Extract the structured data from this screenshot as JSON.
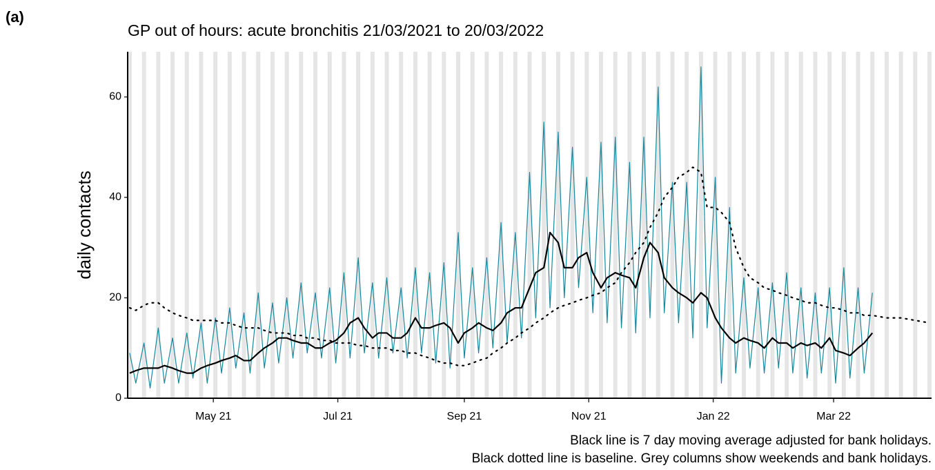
{
  "panel_label": "(a)",
  "chart_data": {
    "type": "line",
    "title": "GP out of hours: acute bronchitis 21/03/2021 to 20/03/2022",
    "y_label": "daily contacts",
    "annotations": [
      "Black line is 7 day moving average adjusted for bank holidays.",
      "Black dotted line is baseline. Grey columns show weekends and bank holidays."
    ],
    "shade_weekends": true,
    "shade_color": "#e5e5e5",
    "xlim": [
      "2021-03-20",
      "2022-04-18"
    ],
    "xticks": [
      {
        "value": "2021-05-01",
        "label": "May 21"
      },
      {
        "value": "2021-07-01",
        "label": "Jul 21"
      },
      {
        "value": "2021-09-01",
        "label": "Sep 21"
      },
      {
        "value": "2021-11-01",
        "label": "Nov 21"
      },
      {
        "value": "2022-01-01",
        "label": "Jan 22"
      },
      {
        "value": "2022-03-01",
        "label": "Mar 22"
      }
    ],
    "ylim": [
      0,
      69
    ],
    "yticks": [
      0,
      20,
      40,
      60
    ],
    "x": [
      "2021-03-21",
      "2021-03-24",
      "2021-03-28",
      "2021-03-31",
      "2021-04-04",
      "2021-04-07",
      "2021-04-11",
      "2021-04-14",
      "2021-04-18",
      "2021-04-21",
      "2021-04-25",
      "2021-04-28",
      "2021-05-02",
      "2021-05-05",
      "2021-05-09",
      "2021-05-12",
      "2021-05-16",
      "2021-05-19",
      "2021-05-23",
      "2021-05-26",
      "2021-05-30",
      "2021-06-02",
      "2021-06-06",
      "2021-06-09",
      "2021-06-13",
      "2021-06-16",
      "2021-06-20",
      "2021-06-23",
      "2021-06-27",
      "2021-06-30",
      "2021-07-04",
      "2021-07-07",
      "2021-07-11",
      "2021-07-14",
      "2021-07-18",
      "2021-07-21",
      "2021-07-25",
      "2021-07-28",
      "2021-08-01",
      "2021-08-04",
      "2021-08-08",
      "2021-08-11",
      "2021-08-15",
      "2021-08-18",
      "2021-08-22",
      "2021-08-25",
      "2021-08-29",
      "2021-09-01",
      "2021-09-05",
      "2021-09-08",
      "2021-09-12",
      "2021-09-15",
      "2021-09-19",
      "2021-09-22",
      "2021-09-26",
      "2021-09-29",
      "2021-10-03",
      "2021-10-06",
      "2021-10-10",
      "2021-10-13",
      "2021-10-17",
      "2021-10-20",
      "2021-10-24",
      "2021-10-27",
      "2021-10-31",
      "2021-11-03",
      "2021-11-07",
      "2021-11-10",
      "2021-11-14",
      "2021-11-17",
      "2021-11-21",
      "2021-11-24",
      "2021-11-28",
      "2021-12-01",
      "2021-12-05",
      "2021-12-08",
      "2021-12-12",
      "2021-12-15",
      "2021-12-19",
      "2021-12-22",
      "2021-12-26",
      "2021-12-29",
      "2022-01-02",
      "2022-01-05",
      "2022-01-09",
      "2022-01-12",
      "2022-01-16",
      "2022-01-19",
      "2022-01-23",
      "2022-01-26",
      "2022-01-30",
      "2022-02-02",
      "2022-02-06",
      "2022-02-09",
      "2022-02-13",
      "2022-02-16",
      "2022-02-20",
      "2022-02-23",
      "2022-02-27",
      "2022-03-02",
      "2022-03-06",
      "2022-03-09",
      "2022-03-13",
      "2022-03-16",
      "2022-03-20",
      "2022-03-27",
      "2022-04-03",
      "2022-04-10",
      "2022-04-17"
    ],
    "series": [
      {
        "name": "daily contacts",
        "color": "#16879b",
        "width": 1.2,
        "dash": "solid",
        "values": [
          9,
          3,
          11,
          2,
          14,
          3,
          12,
          3,
          13,
          4,
          15,
          3,
          16,
          5,
          18,
          6,
          17,
          5,
          21,
          6,
          19,
          7,
          20,
          8,
          23,
          9,
          21,
          8,
          22,
          7,
          25,
          8,
          28,
          9,
          23,
          8,
          24,
          9,
          22,
          8,
          26,
          9,
          25,
          7,
          27,
          6,
          33,
          8,
          26,
          9,
          28,
          10,
          35,
          11,
          33,
          12,
          45,
          16,
          55,
          18,
          53,
          20,
          50,
          22,
          44,
          17,
          51,
          15,
          52,
          14,
          47,
          13,
          52,
          16,
          62,
          17,
          43,
          15,
          43,
          12,
          66,
          14,
          44,
          3,
          38,
          5,
          24,
          6,
          22,
          5,
          23,
          6,
          25,
          5,
          22,
          4,
          21,
          5,
          22,
          3,
          26,
          4,
          22,
          5,
          21,
          null,
          null,
          null,
          null
        ]
      },
      {
        "name": "7 day moving average",
        "color": "#000000",
        "width": 2.2,
        "dash": "solid",
        "values": [
          5,
          5.5,
          6,
          6,
          6,
          6.5,
          6,
          5.5,
          5,
          5,
          6,
          6.5,
          7,
          7.5,
          8,
          8.5,
          7.5,
          7.5,
          9,
          10,
          11,
          12,
          12,
          11.5,
          11,
          11,
          10,
          10,
          11,
          11.5,
          13,
          15,
          16,
          14,
          12,
          13,
          13,
          12,
          12,
          13,
          16,
          14,
          14,
          14.5,
          15,
          14,
          11,
          13,
          14,
          15,
          14,
          13.5,
          15,
          17,
          18,
          18,
          22,
          25,
          26,
          33,
          31,
          26,
          26,
          28,
          29,
          25,
          22,
          24,
          25,
          24.5,
          24,
          22,
          28,
          31,
          29,
          24,
          22,
          21,
          20,
          19,
          21,
          20,
          16,
          14,
          12,
          11,
          12,
          11.5,
          11,
          10,
          12,
          11,
          11,
          10,
          11,
          10.5,
          11,
          10,
          12,
          9.5,
          9,
          8.5,
          10,
          11,
          13,
          null,
          null,
          null,
          null
        ]
      },
      {
        "name": "baseline",
        "color": "#000000",
        "width": 2.2,
        "dash": "dotted",
        "values": [
          18,
          17.5,
          18.5,
          19,
          19,
          18,
          17,
          16.5,
          16,
          15.5,
          15.5,
          15.5,
          15.5,
          15,
          15,
          14.5,
          14,
          14,
          14,
          13.5,
          13,
          13,
          13,
          12.5,
          12.5,
          12,
          12,
          11.5,
          11.5,
          11,
          11,
          11,
          10.5,
          10.5,
          10,
          10,
          10,
          9.5,
          9.5,
          9,
          9,
          8.5,
          8,
          7.5,
          7,
          7,
          6.5,
          6.5,
          7,
          7.5,
          8,
          9,
          10,
          11,
          12,
          13,
          14,
          15,
          16,
          17,
          18,
          18.5,
          19,
          19.5,
          20,
          20.5,
          21,
          22,
          23,
          25,
          27,
          29,
          31,
          34,
          37,
          40,
          42,
          44,
          45,
          46,
          45,
          38,
          38,
          37,
          35,
          30,
          26,
          24,
          23,
          22,
          21.5,
          21,
          20.5,
          20,
          19.5,
          19,
          19,
          18.5,
          18,
          18,
          17.5,
          17,
          17,
          16.5,
          16.5,
          16,
          16,
          15.5,
          15
        ]
      }
    ]
  }
}
